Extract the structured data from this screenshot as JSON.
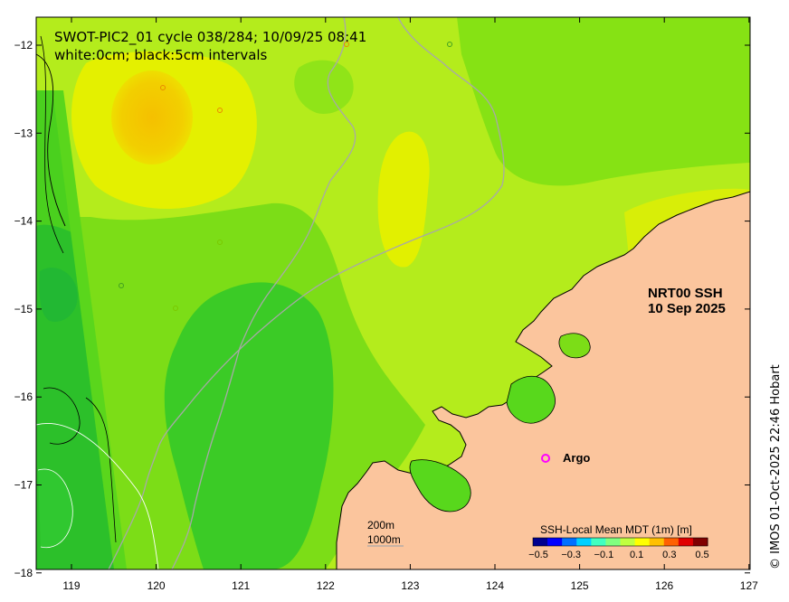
{
  "title_line1": "SWOT-PIC2_01 cycle 038/284; 10/09/25 08:41",
  "title_line2": "white:0cm; black:5cm intervals",
  "product_line1": "NRT00 SSH",
  "product_line2": "10 Sep 2025",
  "argo_label": "Argo",
  "depth_label_200": "200m",
  "depth_label_1000": "1000m",
  "colorbar_title": "SSH-Local Mean MDT (1m) [m]",
  "colorbar_ticks": [
    "−0.5",
    "−0.3",
    "−0.1",
    "0.1",
    "0.3",
    "0.5"
  ],
  "colorbar_colors": [
    "#00008f",
    "#0000ff",
    "#0070ff",
    "#00d0ff",
    "#40ffc0",
    "#80ff80",
    "#c0ff40",
    "#ffff00",
    "#ffc000",
    "#ff6000",
    "#e00000",
    "#800000"
  ],
  "credit": "© IMOS 01-Oct-2025 22:46 Hobart",
  "x_ticks": [
    "119",
    "120",
    "121",
    "122",
    "123",
    "124",
    "125",
    "126",
    "127"
  ],
  "y_ticks": [
    "−12",
    "−13",
    "−14",
    "−15",
    "−16",
    "−17",
    "−18"
  ],
  "colors": {
    "land": "#fbc59d",
    "ocean_base": "#b6ee1a",
    "ssh_yellow": "#e6f200",
    "ssh_orange": "#f7c400",
    "ssh_green": "#5ad61c",
    "ssh_dark_green": "#35c82a",
    "argo_marker": "#ff00ff"
  }
}
